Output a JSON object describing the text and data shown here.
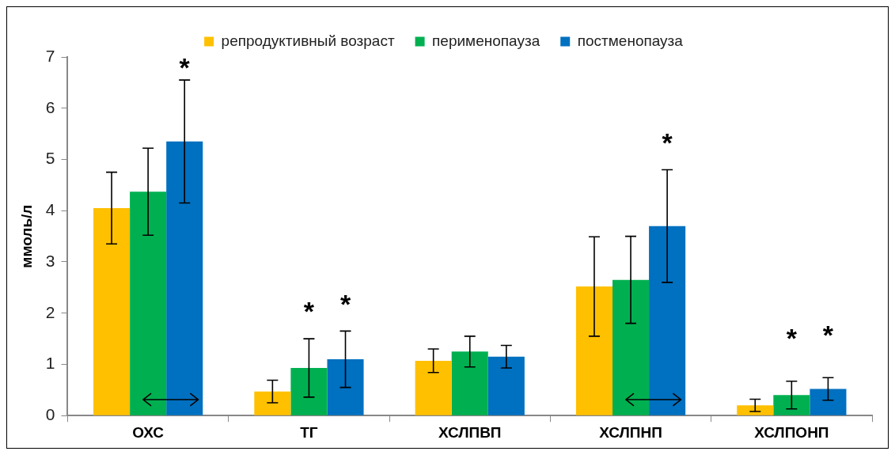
{
  "chart_data": {
    "type": "bar",
    "ylabel": "ммоль/л",
    "categories": [
      "ОХС",
      "ТГ",
      "ХСЛПВП",
      "ХСЛПНП",
      "ХСЛПОНП"
    ],
    "series": [
      {
        "name": "репродуктивный возраст",
        "color": "#ffc000",
        "values": [
          4.05,
          0.47,
          1.07,
          2.52,
          0.2
        ],
        "errors": [
          0.7,
          0.22,
          0.23,
          0.97,
          0.12
        ]
      },
      {
        "name": "перименопауза",
        "color": "#00b050",
        "values": [
          4.37,
          0.93,
          1.25,
          2.65,
          0.4
        ],
        "errors": [
          0.85,
          0.57,
          0.3,
          0.85,
          0.27
        ]
      },
      {
        "name": "постменопауза",
        "color": "#0070c0",
        "values": [
          5.35,
          1.1,
          1.15,
          3.7,
          0.52
        ],
        "errors": [
          1.2,
          0.55,
          0.22,
          1.1,
          0.22
        ]
      }
    ],
    "ylim": [
      0,
      7
    ],
    "yticks": [
      0,
      1,
      2,
      3,
      4,
      5,
      6,
      7
    ],
    "grid": false,
    "legend": "top",
    "annotations": [
      "*",
      "*",
      "*",
      "*",
      "*",
      "*"
    ]
  }
}
